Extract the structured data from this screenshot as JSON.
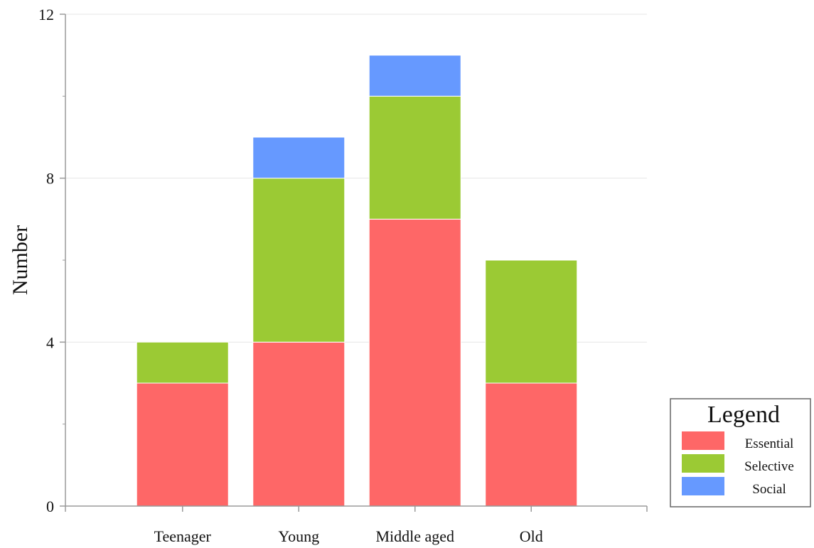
{
  "chart_data": {
    "type": "bar",
    "stacked": true,
    "categories": [
      "Teenager",
      "Young",
      "Middle aged",
      "Old"
    ],
    "series": [
      {
        "name": "Essential",
        "values": [
          3,
          4,
          7,
          3
        ],
        "color": "#fe6767"
      },
      {
        "name": "Selective",
        "values": [
          1,
          4,
          3,
          3
        ],
        "color": "#9bca34"
      },
      {
        "name": "Social",
        "values": [
          0,
          1,
          1,
          0
        ],
        "color": "#6699ff"
      }
    ],
    "title": "",
    "xlabel": "",
    "ylabel": "Number",
    "ylim": [
      0,
      12
    ],
    "yticks": [
      0,
      4,
      8,
      12
    ],
    "grid": true,
    "legend": {
      "title": "Legend",
      "placement": "bottom-right outside"
    }
  }
}
